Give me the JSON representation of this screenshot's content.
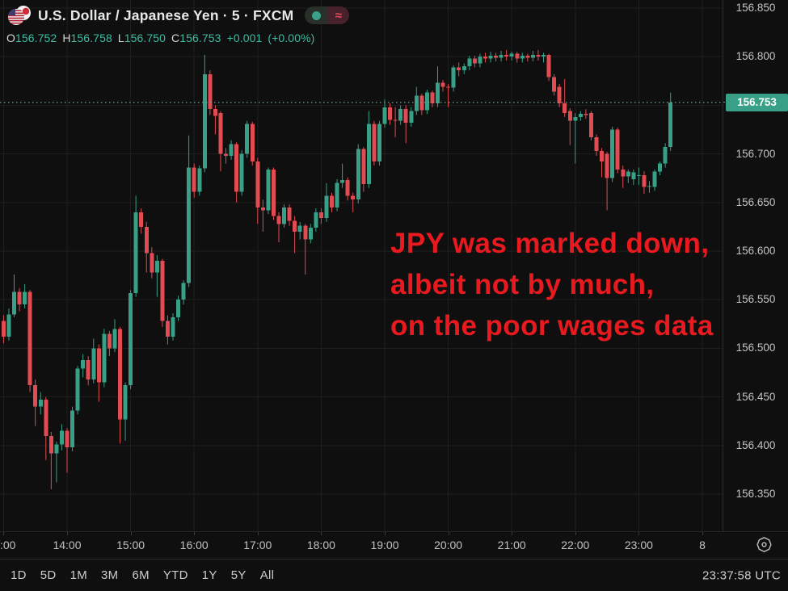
{
  "header": {
    "title": "U.S. Dollar / Japanese Yen · 5 · FXCM",
    "ohlc": {
      "open_label": "O",
      "open": "156.752",
      "high_label": "H",
      "high": "156.758",
      "low_label": "L",
      "low": "156.750",
      "close_label": "C",
      "close": "156.753",
      "change": "+0.001",
      "change_pct": "(+0.00%)"
    }
  },
  "annotation": {
    "lines": [
      "JPY was marked down,",
      "albeit not by much,",
      "on the poor wages data"
    ]
  },
  "price_axis": {
    "labels": [
      "156.850",
      "156.800",
      "156.700",
      "156.650",
      "156.600",
      "156.550",
      "156.500",
      "156.450",
      "156.400",
      "156.350"
    ],
    "current_price": "156.753"
  },
  "time_axis": {
    "labels": [
      ":00",
      "14:00",
      "15:00",
      "16:00",
      "17:00",
      "18:00",
      "19:00",
      "20:00",
      "21:00",
      "22:00",
      "23:00",
      "8"
    ]
  },
  "toolbar": {
    "ranges": [
      "1D",
      "5D",
      "1M",
      "3M",
      "6M",
      "YTD",
      "1Y",
      "5Y",
      "All"
    ],
    "clock": "23:37:58 UTC"
  },
  "colors": {
    "up_candle": "#37a087",
    "down_candle": "#e24b51",
    "grid": "#1d1f1e",
    "price_line": "#6fa298",
    "current_price_bg": "#37a087",
    "annotation_red": "#e8191f",
    "ohlc_value_green": "#3dbda2",
    "status_dot_green": "#3aa08b",
    "status_approx_pink": "#e8485e"
  },
  "chart_data": {
    "type": "candlestick",
    "symbol": "USD/JPY",
    "interval": "5 minutes",
    "ylim": [
      156.33,
      156.86
    ],
    "price_gridlines": [
      156.35,
      156.4,
      156.45,
      156.5,
      156.55,
      156.6,
      156.65,
      156.7,
      156.75,
      156.8,
      156.85
    ],
    "current_price": 156.753,
    "columns": [
      "time",
      "open",
      "high",
      "low",
      "close"
    ],
    "candles": [
      [
        "13:00",
        156.528,
        156.534,
        156.505,
        156.512
      ],
      [
        "13:05",
        156.512,
        156.541,
        156.508,
        156.535
      ],
      [
        "13:10",
        156.535,
        156.576,
        156.532,
        156.558
      ],
      [
        "13:15",
        156.558,
        156.562,
        156.538,
        156.545
      ],
      [
        "13:20",
        156.545,
        156.566,
        156.541,
        156.558
      ],
      [
        "13:25",
        156.558,
        156.56,
        156.455,
        156.462
      ],
      [
        "13:30",
        156.462,
        156.468,
        156.42,
        156.44
      ],
      [
        "13:35",
        156.44,
        156.455,
        156.432,
        156.447
      ],
      [
        "13:40",
        156.447,
        156.45,
        156.385,
        156.41
      ],
      [
        "13:45",
        156.41,
        156.414,
        156.355,
        156.392
      ],
      [
        "13:50",
        156.392,
        156.404,
        156.362,
        156.401
      ],
      [
        "13:55",
        156.401,
        156.422,
        156.395,
        156.415
      ],
      [
        "14:00",
        156.415,
        156.418,
        156.372,
        156.398
      ],
      [
        "14:05",
        156.398,
        156.44,
        156.394,
        156.436
      ],
      [
        "14:10",
        156.436,
        156.482,
        156.432,
        156.479
      ],
      [
        "14:15",
        156.479,
        156.494,
        156.47,
        156.488
      ],
      [
        "14:20",
        156.488,
        156.492,
        156.462,
        156.468
      ],
      [
        "14:25",
        156.468,
        156.51,
        156.464,
        156.5
      ],
      [
        "14:30",
        156.5,
        156.504,
        156.445,
        156.465
      ],
      [
        "14:35",
        156.465,
        156.52,
        156.46,
        156.515
      ],
      [
        "14:40",
        156.515,
        156.518,
        156.492,
        156.5
      ],
      [
        "14:45",
        156.5,
        156.53,
        156.496,
        156.52
      ],
      [
        "14:50",
        156.52,
        156.522,
        156.402,
        156.427
      ],
      [
        "14:55",
        156.427,
        156.465,
        156.405,
        156.462
      ],
      [
        "15:00",
        156.462,
        156.56,
        156.458,
        156.557
      ],
      [
        "15:05",
        156.557,
        156.657,
        156.553,
        156.64
      ],
      [
        "15:10",
        156.64,
        156.644,
        156.618,
        156.625
      ],
      [
        "15:15",
        156.625,
        156.63,
        156.578,
        156.598
      ],
      [
        "15:20",
        156.598,
        156.604,
        156.572,
        156.578
      ],
      [
        "15:25",
        156.578,
        156.596,
        156.553,
        156.59
      ],
      [
        "15:30",
        156.59,
        156.592,
        156.522,
        156.528
      ],
      [
        "15:35",
        156.528,
        156.534,
        156.504,
        156.512
      ],
      [
        "15:40",
        156.512,
        156.536,
        156.508,
        156.532
      ],
      [
        "15:45",
        156.532,
        156.554,
        156.528,
        156.55
      ],
      [
        "15:50",
        156.55,
        156.57,
        156.545,
        156.567
      ],
      [
        "15:55",
        156.567,
        156.719,
        156.563,
        156.686
      ],
      [
        "16:00",
        156.686,
        156.69,
        156.655,
        156.661
      ],
      [
        "16:05",
        156.661,
        156.688,
        156.657,
        156.685
      ],
      [
        "16:10",
        156.685,
        156.802,
        156.681,
        156.782
      ],
      [
        "16:15",
        156.782,
        156.786,
        156.74,
        156.746
      ],
      [
        "16:20",
        156.746,
        156.75,
        156.72,
        156.739
      ],
      [
        "16:25",
        156.742,
        156.744,
        156.682,
        156.7
      ],
      [
        "16:30",
        156.7,
        156.706,
        156.69,
        156.698
      ],
      [
        "16:35",
        156.698,
        156.714,
        156.694,
        156.71
      ],
      [
        "16:40",
        156.71,
        156.712,
        156.65,
        156.661
      ],
      [
        "16:45",
        156.661,
        156.704,
        156.657,
        156.7
      ],
      [
        "16:50",
        156.7,
        156.734,
        156.696,
        156.731
      ],
      [
        "16:55",
        156.731,
        156.733,
        156.688,
        156.692
      ],
      [
        "17:00",
        156.692,
        156.696,
        156.628,
        156.645
      ],
      [
        "17:05",
        156.645,
        156.653,
        156.62,
        156.642
      ],
      [
        "17:10",
        156.642,
        156.686,
        156.638,
        156.684
      ],
      [
        "17:15",
        156.684,
        156.686,
        156.632,
        156.636
      ],
      [
        "17:20",
        156.636,
        156.64,
        156.609,
        156.628
      ],
      [
        "17:25",
        156.628,
        156.648,
        156.624,
        156.645
      ],
      [
        "17:30",
        156.645,
        156.648,
        156.626,
        156.631
      ],
      [
        "17:35",
        156.631,
        156.636,
        156.598,
        156.62
      ],
      [
        "17:40",
        156.62,
        156.63,
        156.612,
        156.626
      ],
      [
        "17:45",
        156.626,
        156.628,
        156.576,
        156.612
      ],
      [
        "17:50",
        156.612,
        156.628,
        156.608,
        156.624
      ],
      [
        "17:55",
        156.624,
        156.644,
        156.62,
        156.64
      ],
      [
        "18:00",
        156.64,
        156.644,
        156.628,
        156.634
      ],
      [
        "18:05",
        156.634,
        156.67,
        156.63,
        156.657
      ],
      [
        "18:10",
        156.657,
        156.66,
        156.64,
        156.645
      ],
      [
        "18:15",
        156.645,
        156.674,
        156.641,
        156.67
      ],
      [
        "18:20",
        156.67,
        156.69,
        156.665,
        156.673
      ],
      [
        "18:25",
        156.673,
        156.676,
        156.652,
        156.657
      ],
      [
        "18:30",
        156.657,
        156.66,
        156.64,
        156.653
      ],
      [
        "18:35",
        156.653,
        156.71,
        156.649,
        156.705
      ],
      [
        "18:40",
        156.705,
        156.707,
        156.661,
        156.669
      ],
      [
        "18:45",
        156.669,
        156.744,
        156.665,
        156.731
      ],
      [
        "18:50",
        156.731,
        156.734,
        156.688,
        156.692
      ],
      [
        "18:55",
        156.692,
        156.734,
        156.688,
        156.731
      ],
      [
        "19:00",
        156.731,
        156.756,
        156.727,
        156.748
      ],
      [
        "19:05",
        156.748,
        156.752,
        156.73,
        156.735
      ],
      [
        "19:10",
        156.735,
        156.748,
        156.717,
        156.734
      ],
      [
        "19:15",
        156.734,
        156.75,
        156.73,
        156.746
      ],
      [
        "19:20",
        156.746,
        156.75,
        156.711,
        156.732
      ],
      [
        "19:25",
        156.732,
        156.748,
        156.728,
        156.744
      ],
      [
        "19:30",
        156.744,
        156.769,
        156.74,
        156.76
      ],
      [
        "19:35",
        156.76,
        156.762,
        156.74,
        156.745
      ],
      [
        "19:40",
        156.745,
        156.766,
        156.741,
        156.763
      ],
      [
        "19:45",
        156.763,
        156.765,
        156.748,
        156.752
      ],
      [
        "19:50",
        156.752,
        156.79,
        156.748,
        156.773
      ],
      [
        "19:55",
        156.773,
        156.776,
        156.764,
        156.769
      ],
      [
        "20:00",
        156.769,
        156.772,
        156.748,
        156.768
      ],
      [
        "20:05",
        156.768,
        156.791,
        156.764,
        156.789
      ],
      [
        "20:10",
        156.789,
        156.794,
        156.78,
        156.786
      ],
      [
        "20:15",
        156.786,
        156.793,
        156.782,
        156.79
      ],
      [
        "20:20",
        156.79,
        156.801,
        156.786,
        156.798
      ],
      [
        "20:25",
        156.798,
        156.801,
        156.789,
        156.793
      ],
      [
        "20:30",
        156.793,
        156.803,
        156.789,
        156.8
      ],
      [
        "20:35",
        156.8,
        156.804,
        156.794,
        156.798
      ],
      [
        "20:40",
        156.798,
        156.805,
        156.794,
        156.801
      ],
      [
        "20:45",
        156.801,
        156.804,
        156.795,
        156.799
      ],
      [
        "20:50",
        156.799,
        156.806,
        156.795,
        156.802
      ],
      [
        "20:55",
        156.802,
        156.807,
        156.796,
        156.8
      ],
      [
        "21:00",
        156.8,
        156.805,
        156.796,
        156.803
      ],
      [
        "21:05",
        156.803,
        156.805,
        156.794,
        156.798
      ],
      [
        "21:10",
        156.798,
        156.804,
        156.794,
        156.801
      ],
      [
        "21:15",
        156.801,
        156.803,
        156.795,
        156.799
      ],
      [
        "21:20",
        156.799,
        156.806,
        156.795,
        156.802
      ],
      [
        "21:25",
        156.802,
        156.807,
        156.796,
        156.8
      ],
      [
        "21:30",
        156.8,
        156.804,
        156.794,
        156.802
      ],
      [
        "21:35",
        156.802,
        156.803,
        156.775,
        156.779
      ],
      [
        "21:40",
        156.779,
        156.782,
        156.76,
        156.764
      ],
      [
        "21:45",
        156.769,
        156.772,
        156.748,
        156.752
      ],
      [
        "21:50",
        156.752,
        156.777,
        156.738,
        156.742
      ],
      [
        "21:55",
        156.744,
        156.747,
        156.709,
        156.734
      ],
      [
        "22:00",
        156.734,
        156.742,
        156.69,
        156.738
      ],
      [
        "22:05",
        156.738,
        156.744,
        156.734,
        156.741
      ],
      [
        "22:10",
        156.741,
        156.746,
        156.736,
        156.74
      ],
      [
        "22:15",
        156.742,
        156.744,
        156.714,
        156.717
      ],
      [
        "22:20",
        156.717,
        156.72,
        156.698,
        156.703
      ],
      [
        "22:25",
        156.703,
        156.706,
        156.676,
        156.692
      ],
      [
        "22:30",
        156.7,
        156.702,
        156.642,
        156.675
      ],
      [
        "22:35",
        156.675,
        156.728,
        156.671,
        156.725
      ],
      [
        "22:40",
        156.725,
        156.727,
        156.68,
        156.684
      ],
      [
        "22:45",
        156.684,
        156.688,
        156.665,
        156.677
      ],
      [
        "22:50",
        156.677,
        156.684,
        156.67,
        156.682
      ],
      [
        "22:55",
        156.674,
        156.684,
        156.668,
        156.681
      ],
      [
        "23:00",
        156.678,
        156.686,
        156.668,
        156.678
      ],
      [
        "23:05",
        156.678,
        156.682,
        156.659,
        156.666
      ],
      [
        "23:10",
        156.666,
        156.672,
        156.66,
        156.667
      ],
      [
        "23:15",
        156.666,
        156.684,
        156.662,
        156.682
      ],
      [
        "23:20",
        156.682,
        156.692,
        156.678,
        156.69
      ],
      [
        "23:25",
        156.69,
        156.711,
        156.686,
        156.707
      ],
      [
        "23:30",
        156.707,
        156.763,
        156.703,
        156.753
      ]
    ]
  }
}
